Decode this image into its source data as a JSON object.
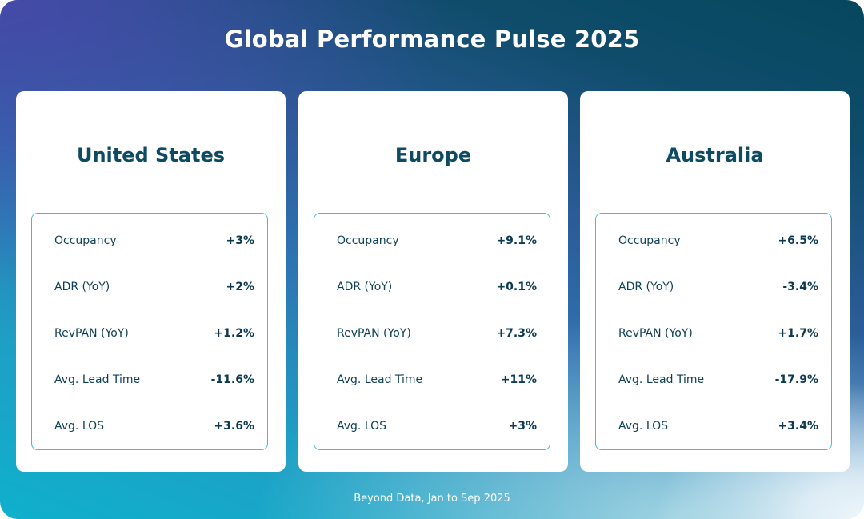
{
  "title": "Global Performance Pulse 2025",
  "footer": "Beyond Data, Jan to Sep 2025",
  "colors": {
    "accent": "#0d4a63",
    "border": "#3fc1ca"
  },
  "regions": [
    {
      "name": "United States",
      "metrics": [
        {
          "label": "Occupancy",
          "value": "+3%"
        },
        {
          "label": "ADR (YoY)",
          "value": "+2%"
        },
        {
          "label": "RevPAN (YoY)",
          "value": "+1.2%"
        },
        {
          "label": "Avg. Lead Time",
          "value": "-11.6%"
        },
        {
          "label": "Avg. LOS",
          "value": "+3.6%"
        }
      ]
    },
    {
      "name": "Europe",
      "metrics": [
        {
          "label": "Occupancy",
          "value": "+9.1%"
        },
        {
          "label": "ADR (YoY)",
          "value": "+0.1%"
        },
        {
          "label": "RevPAN (YoY)",
          "value": "+7.3%"
        },
        {
          "label": "Avg. Lead Time",
          "value": "+11%"
        },
        {
          "label": "Avg. LOS",
          "value": "+3%"
        }
      ]
    },
    {
      "name": "Australia",
      "metrics": [
        {
          "label": "Occupancy",
          "value": "+6.5%"
        },
        {
          "label": "ADR (YoY)",
          "value": "-3.4%"
        },
        {
          "label": "RevPAN (YoY)",
          "value": "+1.7%"
        },
        {
          "label": "Avg. Lead Time",
          "value": "-17.9%"
        },
        {
          "label": "Avg. LOS",
          "value": "+3.4%"
        }
      ]
    }
  ]
}
